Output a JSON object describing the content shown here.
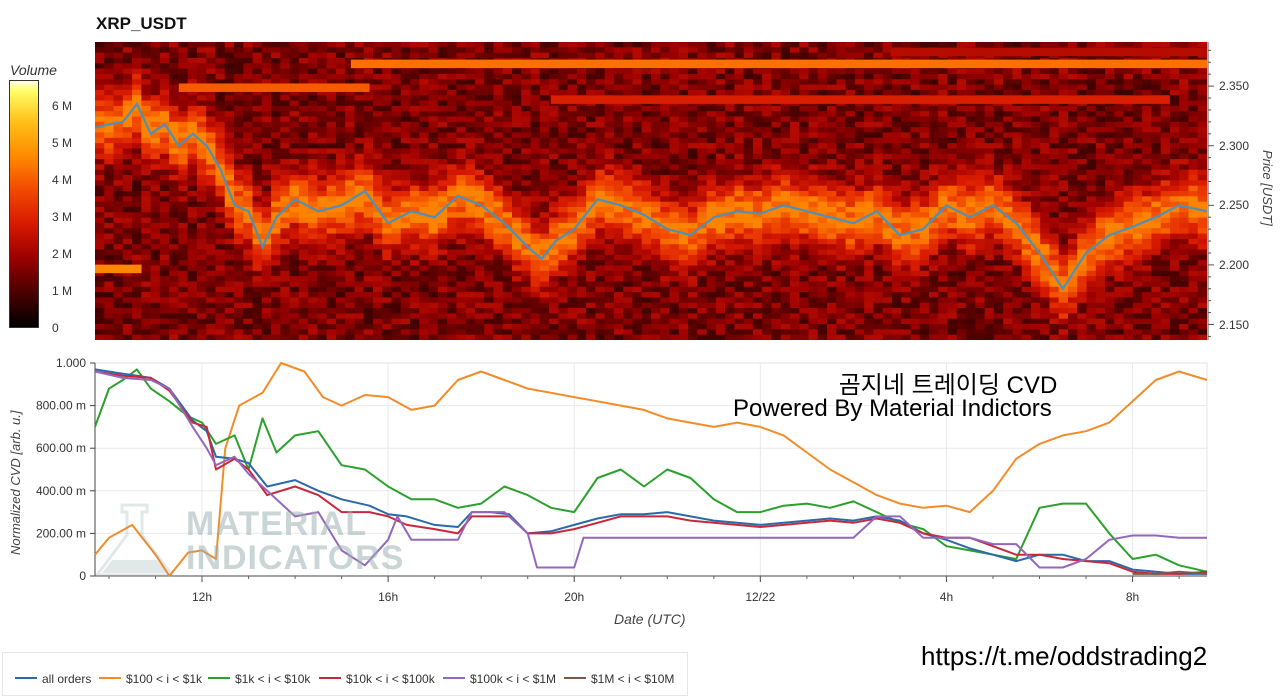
{
  "title": "XRP_USDT",
  "colorbar": {
    "title": "Volume",
    "ticks": [
      {
        "label": "0",
        "value": 0
      },
      {
        "label": "1 M",
        "value": 1
      },
      {
        "label": "2 M",
        "value": 2
      },
      {
        "label": "3 M",
        "value": 3
      },
      {
        "label": "4 M",
        "value": 4
      },
      {
        "label": "5 M",
        "value": 5
      },
      {
        "label": "6 M",
        "value": 6
      }
    ],
    "max": 6.7
  },
  "watermark": {
    "line1": "곰지네 트레이딩 CVD",
    "line2": "Powered By Material Indictors",
    "logo_text_1": "MATERIAL",
    "logo_text_2": "INDICATORS",
    "telegram": "https://t.me/oddstrading2"
  },
  "chart_data": [
    {
      "type": "heatmap",
      "title": "XRP_USDT",
      "ylabel": "Price [USDT]",
      "x_range_hours": [
        9.7,
        33.6
      ],
      "ylim": [
        2.137,
        2.387
      ],
      "y_ticks": [
        {
          "label": "2.150",
          "value": 2.15
        },
        {
          "label": "2.200",
          "value": 2.2
        },
        {
          "label": "2.250",
          "value": 2.25
        },
        {
          "label": "2.300",
          "value": 2.3
        },
        {
          "label": "2.350",
          "value": 2.35
        }
      ],
      "price_series": {
        "name": "price",
        "color": "#4f8fb8",
        "x": [
          9.7,
          10.0,
          10.3,
          10.6,
          10.9,
          11.2,
          11.5,
          11.8,
          12.1,
          12.4,
          12.7,
          13.0,
          13.3,
          13.6,
          14.0,
          14.5,
          15.0,
          15.5,
          16.0,
          16.5,
          17.0,
          17.5,
          18.0,
          18.5,
          19.0,
          19.3,
          19.6,
          20.0,
          20.5,
          21.0,
          21.5,
          22.0,
          22.5,
          23.0,
          23.5,
          24.0,
          24.5,
          25.0,
          25.5,
          26.0,
          26.5,
          27.0,
          27.5,
          28.0,
          28.5,
          29.0,
          29.5,
          30.0,
          30.5,
          31.0,
          31.5,
          32.0,
          32.5,
          33.0,
          33.6
        ],
        "y": [
          2.315,
          2.318,
          2.32,
          2.335,
          2.31,
          2.318,
          2.3,
          2.31,
          2.3,
          2.28,
          2.25,
          2.245,
          2.215,
          2.24,
          2.255,
          2.245,
          2.25,
          2.262,
          2.235,
          2.245,
          2.24,
          2.258,
          2.25,
          2.235,
          2.215,
          2.205,
          2.22,
          2.23,
          2.255,
          2.25,
          2.242,
          2.23,
          2.225,
          2.24,
          2.245,
          2.243,
          2.25,
          2.245,
          2.24,
          2.235,
          2.245,
          2.225,
          2.23,
          2.25,
          2.24,
          2.25,
          2.235,
          2.21,
          2.18,
          2.21,
          2.225,
          2.232,
          2.24,
          2.25,
          2.245
        ]
      },
      "walls": [
        {
          "price": 2.37,
          "x0": 15.2,
          "x1": 33.6,
          "volume": 4.3
        },
        {
          "price": 2.35,
          "x0": 11.5,
          "x1": 15.6,
          "volume": 4.0
        },
        {
          "price": 2.34,
          "x0": 19.5,
          "x1": 32.8,
          "volume": 2.9
        },
        {
          "price": 2.198,
          "x0": 9.7,
          "x1": 10.7,
          "volume": 4.6
        },
        {
          "price": 2.38,
          "x0": 26.8,
          "x1": 33.6,
          "volume": 2.3
        }
      ]
    },
    {
      "type": "line",
      "xlabel": "Date (UTC)",
      "ylabel": "Normalized CVD [arb. u.]",
      "x_range_hours": [
        9.7,
        33.6
      ],
      "ylim": [
        0,
        1
      ],
      "x_ticks": [
        {
          "label": "12h",
          "value": 12
        },
        {
          "label": "16h",
          "value": 16
        },
        {
          "label": "20h",
          "value": 20
        },
        {
          "label": "12/22",
          "value": 24
        },
        {
          "label": "4h",
          "value": 28
        },
        {
          "label": "8h",
          "value": 32
        }
      ],
      "y_ticks": [
        {
          "label": "0",
          "value": 0
        },
        {
          "label": "200.00 m",
          "value": 0.2
        },
        {
          "label": "400.00 m",
          "value": 0.4
        },
        {
          "label": "600.00 m",
          "value": 0.6
        },
        {
          "label": "800.00 m",
          "value": 0.8
        },
        {
          "label": "1.000",
          "value": 1.0
        }
      ],
      "series": [
        {
          "name": "all orders",
          "color": "#2a6aa8",
          "x": [
            9.7,
            10.3,
            10.9,
            11.3,
            11.8,
            12.1,
            12.3,
            12.7,
            13.0,
            13.4,
            14.0,
            14.5,
            15.0,
            15.6,
            16.0,
            16.4,
            17.0,
            17.5,
            17.8,
            18.2,
            18.6,
            19.0,
            19.5,
            20.0,
            20.5,
            21.0,
            21.5,
            22.0,
            22.5,
            23.0,
            23.5,
            24.0,
            24.5,
            25.0,
            25.5,
            26.0,
            26.5,
            27.0,
            27.5,
            28.0,
            28.5,
            29.0,
            29.5,
            30.0,
            30.5,
            31.0,
            31.5,
            32.0,
            32.5,
            33.0,
            33.6
          ],
          "y": [
            0.97,
            0.95,
            0.93,
            0.88,
            0.73,
            0.68,
            0.56,
            0.55,
            0.53,
            0.42,
            0.45,
            0.4,
            0.36,
            0.33,
            0.29,
            0.28,
            0.24,
            0.23,
            0.3,
            0.3,
            0.29,
            0.2,
            0.21,
            0.24,
            0.27,
            0.29,
            0.29,
            0.3,
            0.28,
            0.26,
            0.25,
            0.24,
            0.25,
            0.26,
            0.27,
            0.26,
            0.28,
            0.26,
            0.2,
            0.17,
            0.13,
            0.1,
            0.07,
            0.1,
            0.1,
            0.07,
            0.07,
            0.03,
            0.02,
            0.01,
            0.01
          ]
        },
        {
          "name": "$100 < i < $1k",
          "color": "#f28c28",
          "x": [
            9.7,
            10.0,
            10.5,
            11.0,
            11.3,
            11.7,
            12.0,
            12.3,
            12.5,
            12.8,
            13.3,
            13.7,
            14.2,
            14.6,
            15.0,
            15.5,
            16.0,
            16.5,
            17.0,
            17.5,
            18.0,
            18.5,
            19.0,
            19.5,
            20.0,
            20.5,
            21.0,
            21.5,
            22.0,
            22.5,
            23.0,
            23.5,
            24.0,
            24.5,
            25.0,
            25.5,
            26.0,
            26.5,
            27.0,
            27.5,
            28.0,
            28.5,
            29.0,
            29.5,
            30.0,
            30.5,
            31.0,
            31.5,
            32.0,
            32.5,
            33.0,
            33.6
          ],
          "y": [
            0.1,
            0.18,
            0.24,
            0.1,
            0.0,
            0.11,
            0.12,
            0.08,
            0.6,
            0.8,
            0.86,
            1.0,
            0.96,
            0.84,
            0.8,
            0.85,
            0.84,
            0.78,
            0.8,
            0.92,
            0.96,
            0.92,
            0.88,
            0.86,
            0.84,
            0.82,
            0.8,
            0.78,
            0.74,
            0.72,
            0.7,
            0.72,
            0.7,
            0.66,
            0.58,
            0.5,
            0.44,
            0.38,
            0.34,
            0.32,
            0.33,
            0.3,
            0.4,
            0.55,
            0.62,
            0.66,
            0.68,
            0.72,
            0.82,
            0.92,
            0.96,
            0.92
          ]
        },
        {
          "name": "$1k < i < $10k",
          "color": "#2ca02c",
          "x": [
            9.7,
            10.0,
            10.3,
            10.6,
            10.9,
            11.3,
            11.7,
            12.0,
            12.3,
            12.7,
            13.0,
            13.3,
            13.6,
            14.0,
            14.5,
            15.0,
            15.5,
            16.0,
            16.5,
            17.0,
            17.5,
            18.0,
            18.5,
            19.0,
            19.5,
            20.0,
            20.5,
            21.0,
            21.5,
            22.0,
            22.5,
            23.0,
            23.5,
            24.0,
            24.5,
            25.0,
            25.5,
            26.0,
            26.5,
            27.0,
            27.5,
            28.0,
            28.5,
            29.0,
            29.5,
            30.0,
            30.5,
            31.0,
            31.5,
            32.0,
            32.5,
            33.0,
            33.6
          ],
          "y": [
            0.7,
            0.88,
            0.92,
            0.97,
            0.88,
            0.82,
            0.75,
            0.72,
            0.62,
            0.66,
            0.5,
            0.74,
            0.58,
            0.66,
            0.68,
            0.52,
            0.5,
            0.42,
            0.36,
            0.36,
            0.32,
            0.34,
            0.42,
            0.38,
            0.32,
            0.3,
            0.46,
            0.5,
            0.42,
            0.5,
            0.46,
            0.36,
            0.3,
            0.3,
            0.33,
            0.34,
            0.32,
            0.35,
            0.3,
            0.25,
            0.22,
            0.14,
            0.12,
            0.1,
            0.08,
            0.32,
            0.34,
            0.34,
            0.2,
            0.08,
            0.1,
            0.05,
            0.02
          ]
        },
        {
          "name": "$10k < i < $100k",
          "color": "#c8283c",
          "x": [
            9.7,
            10.3,
            10.9,
            11.3,
            11.8,
            12.1,
            12.3,
            12.7,
            13.0,
            13.4,
            14.0,
            14.5,
            15.0,
            15.6,
            16.0,
            16.4,
            17.0,
            17.5,
            17.8,
            18.2,
            18.6,
            19.0,
            19.5,
            20.0,
            20.5,
            21.0,
            21.5,
            22.0,
            22.5,
            23.0,
            23.5,
            24.0,
            24.5,
            25.0,
            25.5,
            26.0,
            26.5,
            27.0,
            27.5,
            28.0,
            28.5,
            29.0,
            29.5,
            30.0,
            30.5,
            31.0,
            31.5,
            32.0,
            32.5,
            33.0,
            33.6
          ],
          "y": [
            0.96,
            0.94,
            0.93,
            0.87,
            0.72,
            0.7,
            0.5,
            0.55,
            0.5,
            0.38,
            0.42,
            0.38,
            0.3,
            0.3,
            0.28,
            0.24,
            0.22,
            0.2,
            0.28,
            0.28,
            0.28,
            0.2,
            0.2,
            0.22,
            0.25,
            0.28,
            0.28,
            0.28,
            0.26,
            0.25,
            0.24,
            0.23,
            0.24,
            0.25,
            0.26,
            0.25,
            0.27,
            0.25,
            0.2,
            0.18,
            0.18,
            0.14,
            0.1,
            0.1,
            0.08,
            0.07,
            0.06,
            0.02,
            0.01,
            0.01,
            0.02
          ]
        },
        {
          "name": "$100k < i < $1M",
          "color": "#9467bd",
          "x": [
            9.7,
            10.3,
            10.9,
            11.3,
            11.8,
            12.1,
            12.3,
            12.7,
            13.0,
            13.4,
            14.0,
            14.5,
            15.0,
            15.5,
            16.0,
            16.2,
            16.5,
            17.0,
            17.5,
            17.8,
            18.5,
            19.0,
            19.2,
            19.5,
            20.0,
            20.2,
            20.8,
            21.5,
            22.0,
            22.5,
            23.0,
            23.5,
            24.0,
            24.5,
            25.0,
            25.5,
            26.0,
            26.5,
            27.0,
            27.5,
            28.0,
            28.5,
            29.0,
            29.5,
            30.0,
            30.5,
            31.0,
            31.5,
            32.0,
            32.5,
            33.0,
            33.6
          ],
          "y": [
            0.96,
            0.93,
            0.92,
            0.88,
            0.7,
            0.6,
            0.52,
            0.56,
            0.48,
            0.4,
            0.28,
            0.3,
            0.12,
            0.05,
            0.17,
            0.28,
            0.17,
            0.17,
            0.17,
            0.3,
            0.3,
            0.2,
            0.04,
            0.04,
            0.04,
            0.18,
            0.18,
            0.18,
            0.18,
            0.18,
            0.18,
            0.18,
            0.18,
            0.18,
            0.18,
            0.18,
            0.18,
            0.28,
            0.28,
            0.18,
            0.18,
            0.18,
            0.15,
            0.15,
            0.04,
            0.04,
            0.08,
            0.17,
            0.19,
            0.19,
            0.18,
            0.18
          ]
        },
        {
          "name": "$1M < i < $10M",
          "color": "#7b5a4a",
          "x": [
            32.0,
            32.5,
            33.0,
            33.6
          ],
          "y": [
            0.01,
            0.01,
            0.02,
            0.01
          ]
        }
      ]
    }
  ]
}
